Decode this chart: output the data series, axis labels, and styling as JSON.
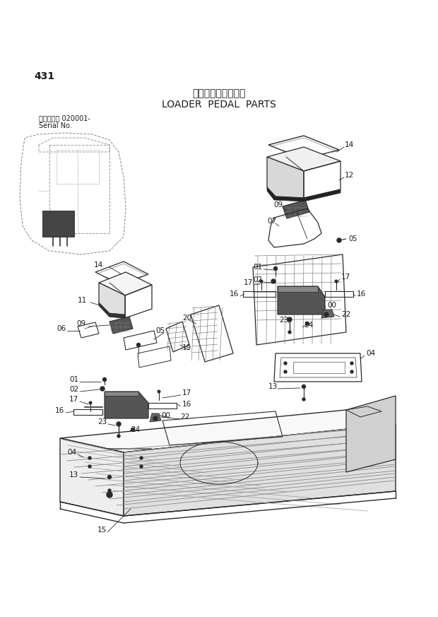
{
  "title_japanese": "ローダ゚ペダル部品",
  "title_english": "LOADER  PEDAL  PARTS",
  "page_number": "431",
  "serial_label": "適用号機　 020001-",
  "serial_label2": "Serial No.",
  "bg_color": "#ffffff",
  "line_color": "#2a2a2a",
  "text_color": "#1a1a1a",
  "fig_width": 6.2,
  "fig_height": 8.73,
  "dpi": 100
}
